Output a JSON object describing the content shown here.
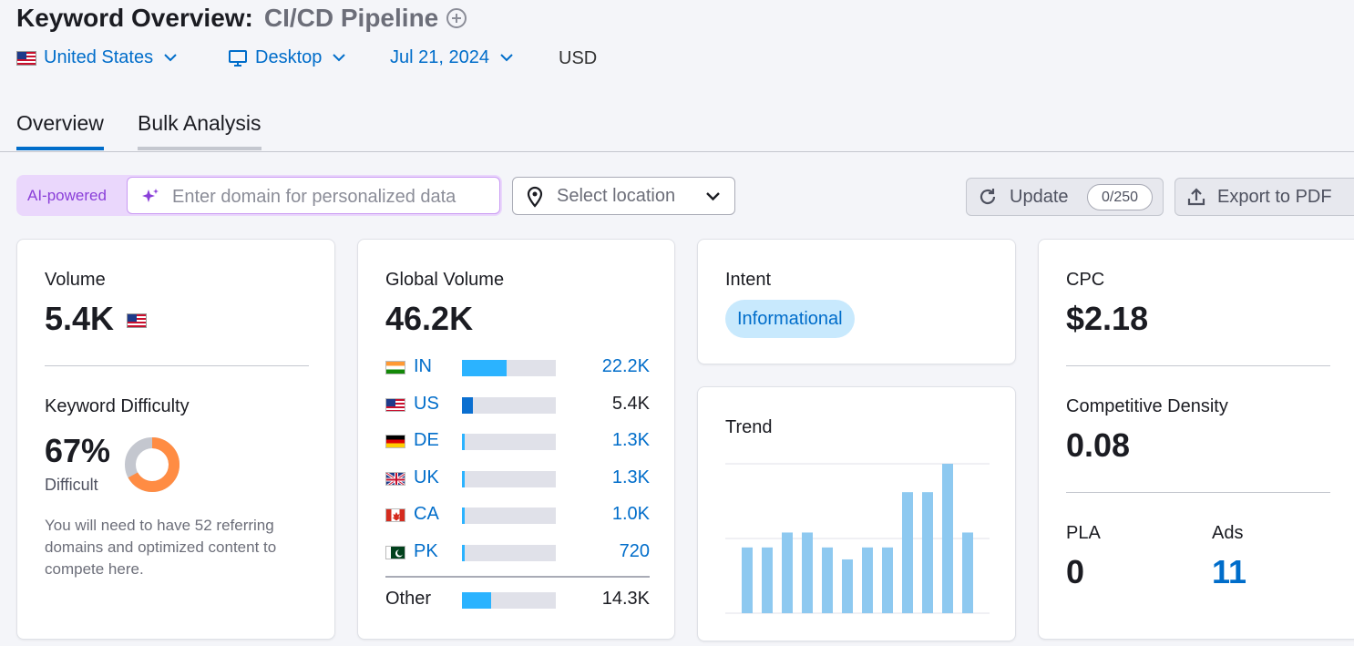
{
  "header": {
    "title": "Keyword Overview:",
    "keyword": "CI/CD Pipeline"
  },
  "filters": {
    "country": "United States",
    "device": "Desktop",
    "date": "Jul 21, 2024",
    "currency": "USD"
  },
  "tabs": [
    {
      "label": "Overview",
      "active": true
    },
    {
      "label": "Bulk Analysis",
      "active": false
    }
  ],
  "toolbar": {
    "ai_label": "AI-powered",
    "domain_placeholder": "Enter domain for personalized data",
    "location_placeholder": "Select location",
    "update_label": "Update",
    "update_count": "0/250",
    "export_label": "Export to PDF"
  },
  "volume_card": {
    "label": "Volume",
    "value": "5.4K",
    "kd_label": "Keyword Difficulty",
    "kd_value": "67%",
    "kd_level": "Difficult",
    "kd_percent": 67,
    "kd_note": "You will need to have 52 referring domains and optimized content to compete here."
  },
  "global_card": {
    "label": "Global Volume",
    "value": "46.2K",
    "countries": [
      {
        "code": "IN",
        "value": "22.2K",
        "fraction": 0.48,
        "link": true
      },
      {
        "code": "US",
        "value": "5.4K",
        "fraction": 0.12,
        "link": false
      },
      {
        "code": "DE",
        "value": "1.3K",
        "fraction": 0.03,
        "link": true
      },
      {
        "code": "UK",
        "value": "1.3K",
        "fraction": 0.03,
        "link": true
      },
      {
        "code": "CA",
        "value": "1.0K",
        "fraction": 0.03,
        "link": true
      },
      {
        "code": "PK",
        "value": "720",
        "fraction": 0.03,
        "link": true
      }
    ],
    "other": {
      "label": "Other",
      "value": "14.3K",
      "fraction": 0.31
    }
  },
  "intent_card": {
    "label": "Intent",
    "badge": "Informational"
  },
  "trend_card": {
    "label": "Trend"
  },
  "chart_data": {
    "type": "bar",
    "title": "Trend",
    "values": [
      0.44,
      0.44,
      0.54,
      0.54,
      0.44,
      0.36,
      0.44,
      0.44,
      0.81,
      0.81,
      1.0,
      0.54
    ],
    "ylim": [
      0,
      1
    ],
    "grid": true,
    "color": "#8ec9f0"
  },
  "cpc_card": {
    "label": "CPC",
    "value": "$2.18",
    "density_label": "Competitive Density",
    "density_value": "0.08",
    "pla_label": "PLA",
    "pla_value": "0",
    "ads_label": "Ads",
    "ads_value": "11"
  },
  "colors": {
    "accent": "#006dca",
    "kd_orange": "#ff8c43",
    "bar_blue": "#2bb3ff",
    "ai_purple": "#8a3fd9"
  }
}
